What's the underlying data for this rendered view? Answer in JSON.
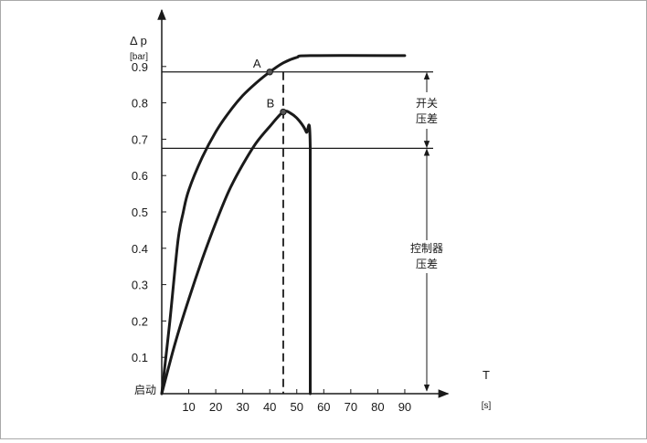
{
  "chart_data": {
    "type": "line",
    "y_title": "Δ p",
    "y_unit": "[bar]",
    "x_title": "T",
    "x_unit": "[s]",
    "origin_label": "启动",
    "x_ticks": [
      10,
      20,
      30,
      40,
      50,
      60,
      70,
      80,
      90
    ],
    "x_tick_labels": [
      "10",
      "20",
      "30",
      "40",
      "50",
      "60",
      "70",
      "80",
      "90"
    ],
    "y_ticks": [
      0.1,
      0.2,
      0.3,
      0.4,
      0.5,
      0.6,
      0.7,
      0.8,
      0.9
    ],
    "y_tick_labels": [
      "0.1",
      "0.2",
      "0.3",
      "0.4",
      "0.5",
      "0.6",
      "0.7",
      "0.8",
      "0.9"
    ],
    "xlim": [
      0,
      102
    ],
    "ylim": [
      0,
      1.0
    ],
    "threshold_high": 0.885,
    "threshold_low": 0.675,
    "marker_x": 45,
    "series": [
      {
        "values": [
          [
            0,
            0
          ],
          [
            3,
            0.2
          ],
          [
            6,
            0.42
          ],
          [
            8,
            0.5
          ],
          [
            10,
            0.56
          ],
          [
            15,
            0.65
          ],
          [
            20,
            0.72
          ],
          [
            25,
            0.775
          ],
          [
            30,
            0.82
          ],
          [
            35,
            0.855
          ],
          [
            40,
            0.885
          ],
          [
            45,
            0.91
          ],
          [
            50,
            0.925
          ],
          [
            55,
            0.93
          ],
          [
            90,
            0.93
          ]
        ]
      },
      {
        "values": [
          [
            0,
            0
          ],
          [
            5,
            0.14
          ],
          [
            10,
            0.26
          ],
          [
            15,
            0.37
          ],
          [
            20,
            0.47
          ],
          [
            25,
            0.56
          ],
          [
            30,
            0.63
          ],
          [
            35,
            0.69
          ],
          [
            40,
            0.735
          ],
          [
            45,
            0.775
          ],
          [
            48,
            0.77
          ],
          [
            51,
            0.75
          ],
          [
            53.5,
            0.72
          ],
          [
            55,
            0.675
          ],
          [
            55,
            0
          ]
        ]
      }
    ],
    "points": [
      {
        "label": "A",
        "x": 40,
        "y": 0.885
      },
      {
        "label": "B",
        "x": 45,
        "y": 0.775
      }
    ],
    "annotations": [
      {
        "text_lines": [
          "开关",
          "压差"
        ]
      },
      {
        "text_lines": [
          "控制器",
          "压差"
        ]
      }
    ],
    "grid": false
  }
}
